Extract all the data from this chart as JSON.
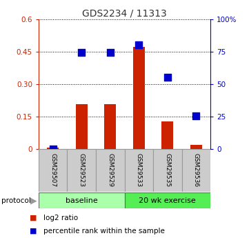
{
  "title": "GDS2234 / 11313",
  "samples": [
    "GSM29507",
    "GSM29523",
    "GSM29529",
    "GSM29533",
    "GSM29535",
    "GSM29536"
  ],
  "log2_ratio": [
    0.005,
    0.205,
    0.205,
    0.47,
    0.125,
    0.018
  ],
  "percentile_rank": [
    0.0,
    74.5,
    74.0,
    80.0,
    55.0,
    25.5
  ],
  "protocol_groups": [
    {
      "label": "baseline",
      "color": "#aaffaa"
    },
    {
      "label": "20 wk exercise",
      "color": "#55ee55"
    }
  ],
  "ylim_left": [
    0,
    0.6
  ],
  "ylim_right": [
    0,
    100
  ],
  "yticks_left": [
    0,
    0.15,
    0.3,
    0.45,
    0.6
  ],
  "yticks_right": [
    0,
    25,
    50,
    75,
    100
  ],
  "ytick_labels_left": [
    "0",
    "0.15",
    "0.30",
    "0.45",
    "0.6"
  ],
  "ytick_labels_right": [
    "0",
    "25",
    "50",
    "75",
    "100%"
  ],
  "bar_color": "#cc2200",
  "dot_color": "#0000cc",
  "bar_width": 0.4,
  "dot_size": 45,
  "left_axis_color": "#cc2200",
  "right_axis_color": "#0000cc",
  "protocol_label": "protocol",
  "legend_bar_label": "log2 ratio",
  "legend_dot_label": "percentile rank within the sample",
  "bg_color": "#ffffff",
  "sample_box_color": "#cccccc",
  "grid_color": "#000000"
}
